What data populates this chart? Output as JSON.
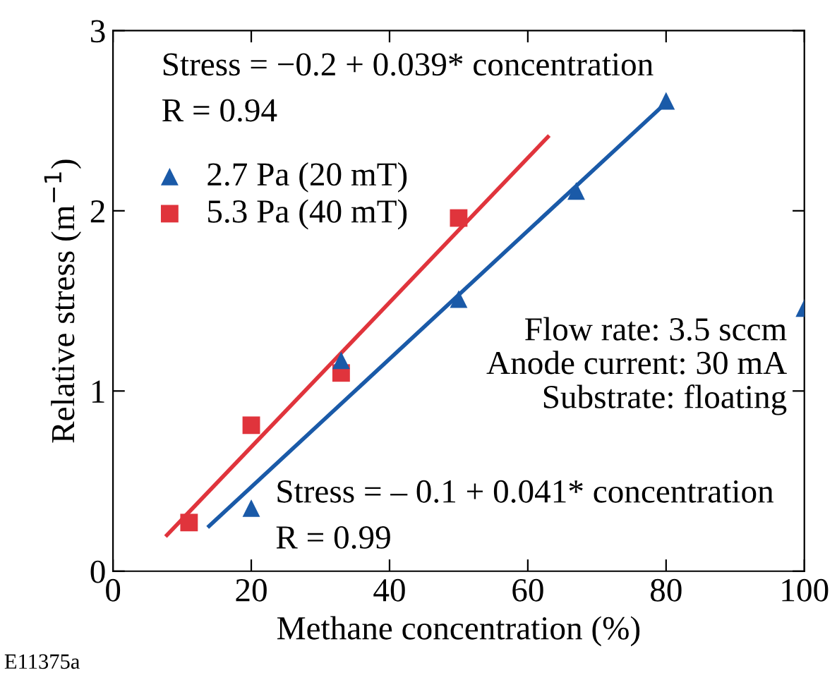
{
  "chart_data": {
    "type": "scatter",
    "xlabel": "Methane concentration (%)",
    "ylabel": "Relative stress (m$^{−1}$)",
    "xlim": [
      0,
      100
    ],
    "ylim": [
      0,
      3
    ],
    "xticks": [
      0,
      20,
      40,
      60,
      80,
      100
    ],
    "yticks": [
      0,
      1,
      2,
      3
    ],
    "grid": false,
    "legend": "top left",
    "series": [
      {
        "name": "2.7 Pa (20 mT)",
        "color": "#1a5aa8",
        "marker": "triangle",
        "x": [
          20,
          33,
          50,
          67,
          80,
          100
        ],
        "values": [
          0.35,
          1.17,
          1.51,
          2.11,
          2.61,
          1.46
        ]
      },
      {
        "name": "5.3 Pa (40 mT)",
        "color": "#e0343c",
        "marker": "square",
        "x": [
          11,
          20,
          33,
          50
        ],
        "values": [
          0.27,
          0.81,
          1.1,
          1.96
        ]
      },
      {
        "type": "line",
        "color": "#1a5aa8",
        "marker": "none",
        "x": [
          13.9,
          80
        ],
        "values": [
          0.25,
          2.6
        ]
      },
      {
        "type": "line",
        "color": "#e0343c",
        "marker": "none",
        "x": [
          7.8,
          62.9
        ],
        "values": [
          0.2,
          2.41
        ]
      }
    ],
    "annotations": [
      "Stress = −0.2 + 0.039* concentration",
      "R = 0.94",
      "Flow rate: 3.5 sccm\nAnode current: 30 mA\nSubstrate: floating",
      "Stress = – 0.1 + 0.041* concentration",
      "R = 0.99",
      "E11375a"
    ]
  }
}
